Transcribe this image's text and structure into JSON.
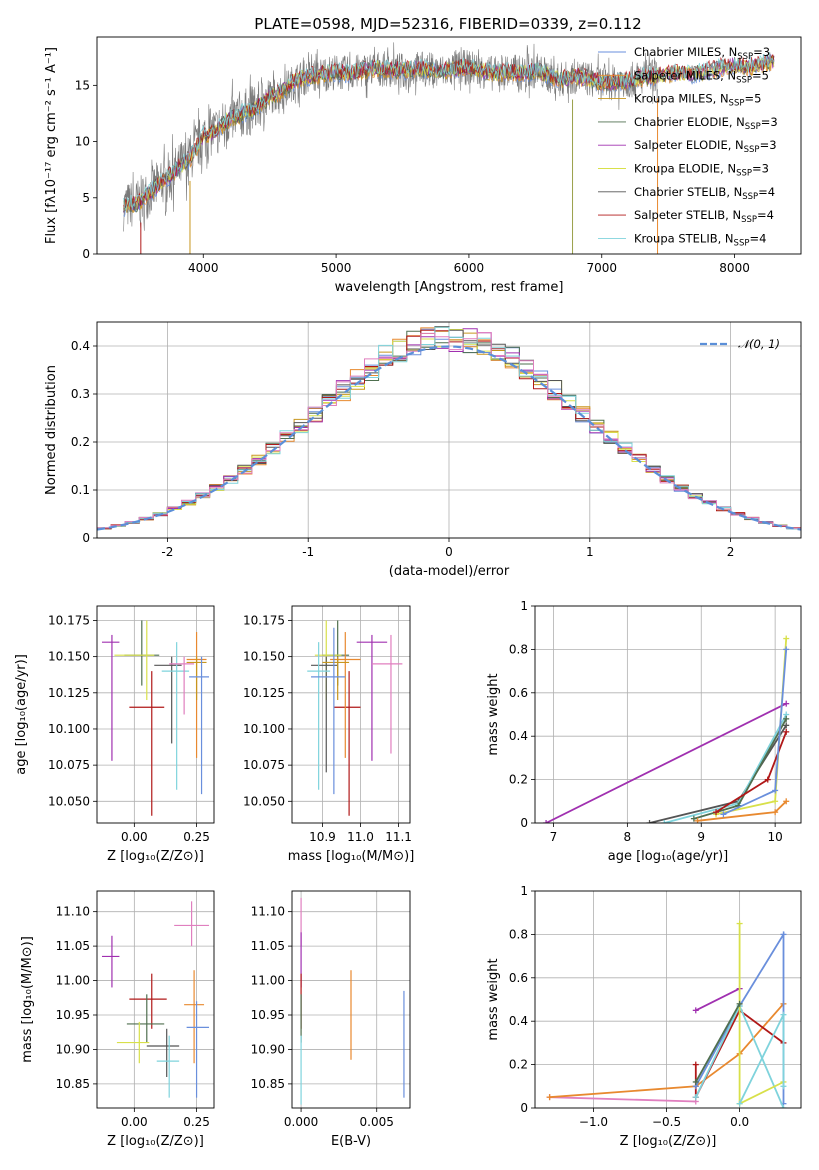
{
  "figure": {
    "title": "PLATE=0598, MJD=52316, FIBERID=0339, z=0.112"
  },
  "colors": {
    "Chabrier MILES": "#6a8fdc",
    "Salpeter MILES": "#e8892f",
    "Kroupa MILES": "#c8961e",
    "Chabrier ELODIE": "#4f6f4f",
    "Salpeter ELODIE": "#a030b0",
    "Kroupa ELODIE": "#d8e04a",
    "Chabrier STELIB": "#555555",
    "Salpeter STELIB": "#b01818",
    "Kroupa STELIB": "#7fd3dc",
    "extra": "#e07fbf",
    "gauss": "#5b8fd8"
  },
  "legends": {
    "spectrum": [
      {
        "name": "Chabrier MILES",
        "n": "3"
      },
      {
        "name": "Salpeter MILES",
        "n": "5"
      },
      {
        "name": "Kroupa MILES",
        "n": "5"
      },
      {
        "name": "Chabrier ELODIE",
        "n": "3"
      },
      {
        "name": "Salpeter ELODIE",
        "n": "3"
      },
      {
        "name": "Kroupa ELODIE",
        "n": "3"
      },
      {
        "name": "Chabrier STELIB",
        "n": "4"
      },
      {
        "name": "Salpeter STELIB",
        "n": "4"
      },
      {
        "name": "Kroupa STELIB",
        "n": "4"
      }
    ],
    "nssp_prefix": "N",
    "nssp_sub": "SSP",
    "gauss_label": "𝒩(0, 1)"
  },
  "chart_data": [
    {
      "id": "spectrum",
      "type": "line",
      "xlabel": "wavelength [Angstrom, rest frame]",
      "ylabel": "Flux [fλ10⁻¹⁷ erg cm⁻² s⁻¹ A⁻¹]",
      "xlim": [
        3200,
        8500
      ],
      "ylim": [
        0,
        19.3
      ],
      "xticks": [
        4000,
        5000,
        6000,
        7000,
        8000
      ],
      "yticks": [
        0,
        5,
        10,
        15
      ],
      "envelope_x": [
        3400,
        3500,
        3600,
        3700,
        3800,
        3900,
        4000,
        4100,
        4200,
        4300,
        4400,
        4500,
        4600,
        4700,
        4800,
        4900,
        5000,
        5100,
        5200,
        5300,
        5400,
        5500,
        5600,
        5700,
        5800,
        5900,
        6000,
        6100,
        6200,
        6300,
        6400,
        6500,
        6600,
        6700,
        6800,
        6900,
        7000,
        7100,
        7200,
        7300,
        7400,
        7500,
        7600,
        7700,
        7800,
        7900,
        8000,
        8100,
        8200,
        8300
      ],
      "envelope_y": [
        4.2,
        4.5,
        5.5,
        6.5,
        7.5,
        8.5,
        10.5,
        11.0,
        12.0,
        12.5,
        13.0,
        14.0,
        14.5,
        15.5,
        15.8,
        16.0,
        16.2,
        16.0,
        16.3,
        16.5,
        16.4,
        16.3,
        16.5,
        16.4,
        16.2,
        16.5,
        16.6,
        16.3,
        16.0,
        16.2,
        16.1,
        16.3,
        15.9,
        15.5,
        15.8,
        15.6,
        15.2,
        15.3,
        15.4,
        15.7,
        15.8,
        16.0,
        16.1,
        16.0,
        16.3,
        16.6,
        16.8,
        16.6,
        16.9,
        17.2
      ],
      "note_spikes_x": [
        3530,
        3900,
        6780,
        7420
      ]
    },
    {
      "id": "residuals",
      "type": "histogram",
      "xlabel": "(data-model)/error",
      "ylabel": "Normed distribution",
      "xlim": [
        -2.5,
        2.5
      ],
      "ylim": [
        0,
        0.45
      ],
      "xticks": [
        -2,
        -1,
        0,
        1,
        2
      ],
      "yticks": [
        0.0,
        0.1,
        0.2,
        0.3,
        0.4
      ],
      "bin_width": 0.1,
      "gauss_curve": {
        "mu": 0,
        "sigma": 1
      }
    },
    {
      "id": "age_vs_Z",
      "type": "scatter",
      "xlabel": "Z [log₁₀(Z/Z⊙)]",
      "ylabel": "age  [log₁₀(age/yr)]",
      "xlim": [
        -0.15,
        0.32
      ],
      "ylim": [
        10.035,
        10.185
      ],
      "xticks": [
        0.0,
        0.25
      ],
      "xtick_labels": [
        "0.00",
        "0.25"
      ],
      "yticks": [
        10.05,
        10.075,
        10.1,
        10.125,
        10.15,
        10.175
      ],
      "ytick_labels": [
        "10.050",
        "10.075",
        "10.100",
        "10.125",
        "10.150",
        "10.175"
      ],
      "points": [
        {
          "series": "Salpeter ELODIE",
          "x": -0.09,
          "y": 10.16,
          "xlo": -0.13,
          "xhi": -0.06,
          "ylo": 10.078,
          "yhi": 10.165
        },
        {
          "series": "Chabrier ELODIE",
          "x": 0.03,
          "y": 10.151,
          "xlo": -0.04,
          "xhi": 0.1,
          "ylo": 10.13,
          "yhi": 10.175
        },
        {
          "series": "Kroupa ELODIE",
          "x": 0.05,
          "y": 10.151,
          "xlo": -0.08,
          "xhi": 0.08,
          "ylo": 10.12,
          "yhi": 10.175
        },
        {
          "series": "Salpeter STELIB",
          "x": 0.07,
          "y": 10.115,
          "xlo": -0.02,
          "xhi": 0.12,
          "ylo": 10.04,
          "yhi": 10.14
        },
        {
          "series": "Chabrier STELIB",
          "x": 0.15,
          "y": 10.144,
          "xlo": 0.08,
          "xhi": 0.19,
          "ylo": 10.09,
          "yhi": 10.15
        },
        {
          "series": "Kroupa STELIB",
          "x": 0.17,
          "y": 10.14,
          "xlo": 0.11,
          "xhi": 0.22,
          "ylo": 10.058,
          "yhi": 10.16
        },
        {
          "series": "extra",
          "x": 0.2,
          "y": 10.145,
          "xlo": 0.14,
          "xhi": 0.24,
          "ylo": 10.11,
          "yhi": 10.15
        },
        {
          "series": "Salpeter MILES",
          "x": 0.25,
          "y": 10.148,
          "xlo": 0.21,
          "xhi": 0.29,
          "ylo": 10.08,
          "yhi": 10.167
        },
        {
          "series": "Kroupa MILES",
          "x": 0.25,
          "y": 10.146,
          "xlo": 0.21,
          "xhi": 0.29,
          "ylo": 10.12,
          "yhi": 10.15
        },
        {
          "series": "Chabrier MILES",
          "x": 0.27,
          "y": 10.136,
          "xlo": 0.22,
          "xhi": 0.3,
          "ylo": 10.055,
          "yhi": 10.15
        }
      ]
    },
    {
      "id": "age_vs_mass",
      "type": "scatter",
      "xlabel": "mass [log₁₀(M/M⊙)]",
      "ylabel": "",
      "xlim": [
        10.82,
        11.13
      ],
      "ylim": [
        10.035,
        10.185
      ],
      "xticks": [
        10.9,
        11.0,
        11.1
      ],
      "xtick_labels": [
        "10.9",
        "11.0",
        "11.1"
      ],
      "yticks": [
        10.05,
        10.075,
        10.1,
        10.125,
        10.15,
        10.175
      ],
      "ytick_labels": [
        "10.050",
        "10.075",
        "10.100",
        "10.125",
        "10.150",
        "10.175"
      ],
      "points": [
        {
          "series": "Salpeter ELODIE",
          "x": 11.03,
          "y": 10.16,
          "xlo": 10.99,
          "xhi": 11.07,
          "ylo": 10.078,
          "yhi": 10.165
        },
        {
          "series": "Chabrier ELODIE",
          "x": 10.94,
          "y": 10.151,
          "xlo": 10.9,
          "xhi": 10.97,
          "ylo": 10.13,
          "yhi": 10.175
        },
        {
          "series": "Kroupa ELODIE",
          "x": 10.91,
          "y": 10.151,
          "xlo": 10.88,
          "xhi": 10.95,
          "ylo": 10.12,
          "yhi": 10.175
        },
        {
          "series": "Salpeter STELIB",
          "x": 10.97,
          "y": 10.115,
          "xlo": 10.93,
          "xhi": 11.0,
          "ylo": 10.04,
          "yhi": 10.14
        },
        {
          "series": "Chabrier STELIB",
          "x": 10.91,
          "y": 10.144,
          "xlo": 10.87,
          "xhi": 10.94,
          "ylo": 10.07,
          "yhi": 10.15
        },
        {
          "series": "Kroupa STELIB",
          "x": 10.89,
          "y": 10.14,
          "xlo": 10.86,
          "xhi": 10.92,
          "ylo": 10.058,
          "yhi": 10.16
        },
        {
          "series": "extra",
          "x": 11.08,
          "y": 10.145,
          "xlo": 11.03,
          "xhi": 11.11,
          "ylo": 10.083,
          "yhi": 10.165
        },
        {
          "series": "Salpeter MILES",
          "x": 10.96,
          "y": 10.148,
          "xlo": 10.92,
          "xhi": 11.0,
          "ylo": 10.08,
          "yhi": 10.167
        },
        {
          "series": "Kroupa MILES",
          "x": 10.94,
          "y": 10.146,
          "xlo": 10.9,
          "xhi": 10.97,
          "ylo": 10.12,
          "yhi": 10.15
        },
        {
          "series": "Chabrier MILES",
          "x": 10.93,
          "y": 10.136,
          "xlo": 10.87,
          "xhi": 10.96,
          "ylo": 10.055,
          "yhi": 10.17
        }
      ]
    },
    {
      "id": "weight_vs_age",
      "type": "line",
      "xlabel": "age  [log₁₀(age/yr)]",
      "ylabel": "mass weight",
      "xlim": [
        6.75,
        10.35
      ],
      "ylim": [
        0,
        1.0
      ],
      "xticks": [
        7,
        8,
        9,
        10
      ],
      "yticks": [
        0.0,
        0.2,
        0.4,
        0.6,
        0.8,
        1.0
      ],
      "series": [
        {
          "name": "Salpeter ELODIE",
          "x": [
            6.9,
            10.15
          ],
          "y": [
            0.0,
            0.55
          ]
        },
        {
          "name": "Chabrier STELIB",
          "x": [
            8.3,
            9.5,
            10.15
          ],
          "y": [
            0.0,
            0.1,
            0.45
          ]
        },
        {
          "name": "Kroupa STELIB",
          "x": [
            8.5,
            9.5,
            10.15
          ],
          "y": [
            0.0,
            0.09,
            0.5
          ]
        },
        {
          "name": "Chabrier ELODIE",
          "x": [
            8.9,
            9.5,
            10.15
          ],
          "y": [
            0.02,
            0.08,
            0.48
          ]
        },
        {
          "name": "Kroupa ELODIE",
          "x": [
            9.2,
            10.0,
            10.15
          ],
          "y": [
            0.04,
            0.1,
            0.85
          ]
        },
        {
          "name": "Salpeter MILES",
          "x": [
            8.95,
            10.0,
            10.15
          ],
          "y": [
            0.01,
            0.05,
            0.1
          ]
        },
        {
          "name": "Salpeter STELIB",
          "x": [
            9.2,
            9.9,
            10.15
          ],
          "y": [
            0.05,
            0.2,
            0.42
          ]
        },
        {
          "name": "Chabrier MILES",
          "x": [
            9.3,
            10.0,
            10.15
          ],
          "y": [
            0.04,
            0.15,
            0.8
          ]
        }
      ]
    },
    {
      "id": "mass_vs_Z",
      "type": "scatter",
      "xlabel": "Z [log₁₀(Z/Z⊙)]",
      "ylabel": "mass [log₁₀(M/M⊙)]",
      "xlim": [
        -0.15,
        0.32
      ],
      "ylim": [
        10.815,
        11.13
      ],
      "xticks": [
        0.0,
        0.25
      ],
      "xtick_labels": [
        "0.00",
        "0.25"
      ],
      "yticks": [
        10.85,
        10.9,
        10.95,
        11.0,
        11.05,
        11.1
      ],
      "ytick_labels": [
        "10.85",
        "10.90",
        "10.95",
        "11.00",
        "11.05",
        "11.10"
      ],
      "points": [
        {
          "series": "Salpeter ELODIE",
          "x": -0.09,
          "y": 11.035,
          "xlo": -0.13,
          "xhi": -0.06,
          "ylo": 10.99,
          "yhi": 11.065
        },
        {
          "series": "Salpeter STELIB",
          "x": 0.07,
          "y": 10.973,
          "xlo": -0.02,
          "xhi": 0.13,
          "ylo": 10.93,
          "yhi": 11.01
        },
        {
          "series": "Chabrier ELODIE",
          "x": 0.05,
          "y": 10.937,
          "xlo": -0.03,
          "xhi": 0.12,
          "ylo": 10.91,
          "yhi": 10.98
        },
        {
          "series": "Kroupa ELODIE",
          "x": 0.02,
          "y": 10.91,
          "xlo": -0.07,
          "xhi": 0.06,
          "ylo": 10.88,
          "yhi": 10.94
        },
        {
          "series": "Chabrier STELIB",
          "x": 0.13,
          "y": 10.905,
          "xlo": 0.05,
          "xhi": 0.18,
          "ylo": 10.86,
          "yhi": 10.93
        },
        {
          "series": "Kroupa STELIB",
          "x": 0.14,
          "y": 10.883,
          "xlo": 0.09,
          "xhi": 0.18,
          "ylo": 10.83,
          "yhi": 10.92
        },
        {
          "series": "extra",
          "x": 0.23,
          "y": 11.08,
          "xlo": 0.16,
          "xhi": 0.3,
          "ylo": 11.05,
          "yhi": 11.115
        },
        {
          "series": "Salpeter MILES",
          "x": 0.24,
          "y": 10.965,
          "xlo": 0.2,
          "xhi": 0.28,
          "ylo": 10.88,
          "yhi": 11.015
        },
        {
          "series": "Chabrier MILES",
          "x": 0.25,
          "y": 10.932,
          "xlo": 0.21,
          "xhi": 0.3,
          "ylo": 10.83,
          "yhi": 10.97
        }
      ]
    },
    {
      "id": "mass_vs_ebv",
      "type": "scatter",
      "xlabel": "E(B-V)",
      "ylabel": "",
      "xlim": [
        -0.0006,
        0.0072
      ],
      "ylim": [
        10.815,
        11.13
      ],
      "xticks": [
        0.0,
        0.005
      ],
      "xtick_labels": [
        "0.000",
        "0.005"
      ],
      "yticks": [
        10.85,
        10.9,
        10.95,
        11.0,
        11.05,
        11.1
      ],
      "ytick_labels": [
        "10.85",
        "10.90",
        "10.95",
        "11.00",
        "11.05",
        "11.10"
      ],
      "points": [
        {
          "series": "extra",
          "x": 0.0,
          "y": 11.08,
          "ylo": 11.05,
          "yhi": 11.12
        },
        {
          "series": "Salpeter ELODIE",
          "x": 0.0,
          "y": 11.03,
          "ylo": 10.99,
          "yhi": 11.07
        },
        {
          "series": "Salpeter STELIB",
          "x": 0.0,
          "y": 10.97,
          "ylo": 10.93,
          "yhi": 11.01
        },
        {
          "series": "Chabrier ELODIE",
          "x": 0.0,
          "y": 10.94,
          "ylo": 10.91,
          "yhi": 10.98
        },
        {
          "series": "Kroupa STELIB",
          "x": 0.0,
          "y": 10.87,
          "ylo": 10.82,
          "yhi": 10.92
        },
        {
          "series": "Salpeter MILES",
          "x": 0.0033,
          "y": 10.95,
          "ylo": 10.885,
          "yhi": 11.015
        },
        {
          "series": "Chabrier MILES",
          "x": 0.0068,
          "y": 10.91,
          "ylo": 10.83,
          "yhi": 10.985
        }
      ]
    },
    {
      "id": "weight_vs_Z",
      "type": "line",
      "xlabel": "Z [log₁₀(Z/Z⊙)]",
      "ylabel": "mass weight",
      "xlim": [
        -1.4,
        0.42
      ],
      "ylim": [
        0,
        1.0
      ],
      "xticks": [
        -1.0,
        -0.5,
        0.0
      ],
      "xtick_labels": [
        "−1.0",
        "−0.5",
        "0.0"
      ],
      "yticks": [
        0.0,
        0.2,
        0.4,
        0.6,
        0.8,
        1.0
      ],
      "series": [
        {
          "name": "extra",
          "x": [
            -1.3,
            -0.3
          ],
          "y": [
            0.05,
            0.03
          ]
        },
        {
          "name": "Salpeter MILES",
          "x": [
            -1.3,
            -0.3,
            0.0,
            0.3
          ],
          "y": [
            0.05,
            0.1,
            0.25,
            0.48
          ]
        },
        {
          "name": "Salpeter ELODIE",
          "x": [
            -0.3,
            0.0
          ],
          "y": [
            0.45,
            0.55
          ]
        },
        {
          "name": "Salpeter STELIB",
          "x": [
            -0.3,
            -0.3,
            0.0,
            0.3
          ],
          "y": [
            0.2,
            0.05,
            0.45,
            0.3
          ]
        },
        {
          "name": "Chabrier MILES",
          "x": [
            -0.3,
            0.0,
            0.3,
            0.3
          ],
          "y": [
            0.1,
            0.47,
            0.8,
            0.02
          ]
        },
        {
          "name": "Kroupa STELIB",
          "x": [
            -0.3,
            0.0,
            0.3
          ],
          "y": [
            0.05,
            0.47,
            0.0
          ]
        },
        {
          "name": "Kroupa ELODIE",
          "x": [
            0.0,
            0.0,
            0.3
          ],
          "y": [
            0.85,
            0.02,
            0.12
          ]
        },
        {
          "name": "Kroupa STELIB",
          "x": [
            0.0,
            0.3,
            0.3
          ],
          "y": [
            0.02,
            0.43,
            0.1
          ]
        },
        {
          "name": "Chabrier ELODIE",
          "x": [
            -0.3,
            0.0
          ],
          "y": [
            0.12,
            0.48
          ]
        }
      ]
    }
  ]
}
